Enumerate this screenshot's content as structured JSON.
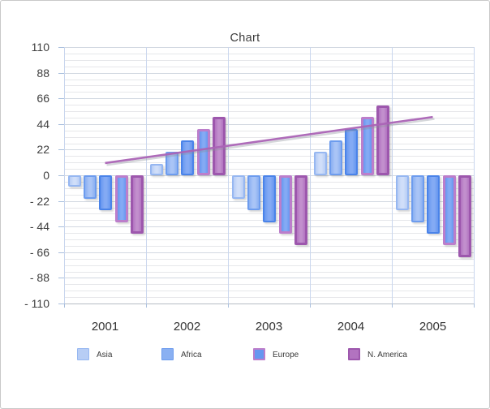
{
  "chart_data": {
    "type": "bar",
    "title": "Chart",
    "categories": [
      "2001",
      "2002",
      "2003",
      "2004",
      "2005"
    ],
    "series": [
      {
        "name": "Asia",
        "in_legend": true,
        "values": [
          -10,
          10,
          -20,
          20,
          -30
        ],
        "fill": "#b7cdf5",
        "highlight": "#d0def9",
        "border": "#96b7f1"
      },
      {
        "name": "Africa",
        "in_legend": true,
        "values": [
          -20,
          20,
          -30,
          30,
          -40
        ],
        "fill": "#8ab0f2",
        "highlight": "#a9c4f6",
        "border": "#6d9cee"
      },
      {
        "name": "",
        "in_legend": false,
        "values": [
          -30,
          30,
          -40,
          40,
          -50
        ],
        "fill": "#6697f0",
        "highlight": "#84aaf4",
        "border": "#4a83e9"
      },
      {
        "name": "Europe",
        "in_legend": true,
        "values": [
          -40,
          40,
          -50,
          50,
          -60
        ],
        "fill": "#6697f0",
        "highlight": "#84aaf4",
        "border": "#bc7ecb"
      },
      {
        "name": "N. America",
        "in_legend": true,
        "values": [
          -50,
          50,
          -60,
          60,
          -70
        ],
        "fill": "#b273c0",
        "highlight": "#c28fcd",
        "border": "#9d57ad"
      }
    ],
    "trendline": {
      "color": "#aa64b6",
      "start_category": "2001",
      "start_value": 10.5,
      "end_category": "2005",
      "end_value": 50
    },
    "y_axis": {
      "min": -110,
      "max": 110,
      "major_unit": 22,
      "minor_unit": 5.5,
      "tick_labels": [
        "110",
        "88",
        "66",
        "44",
        "22",
        "0",
        "- 22",
        "- 44",
        "- 66",
        "- 88",
        "- 110"
      ]
    },
    "legend_labels": [
      "Asia",
      "Africa",
      "Europe",
      "N. America"
    ],
    "grid": true,
    "colors": {
      "grid_minor": "#e6e7ea",
      "grid_major": "#d2d8e1",
      "grid_vertical": "#c9d6ee",
      "axis_line": "#b6bcc5",
      "tick": "#a9bfdd",
      "text": "#3f3f3f"
    }
  }
}
